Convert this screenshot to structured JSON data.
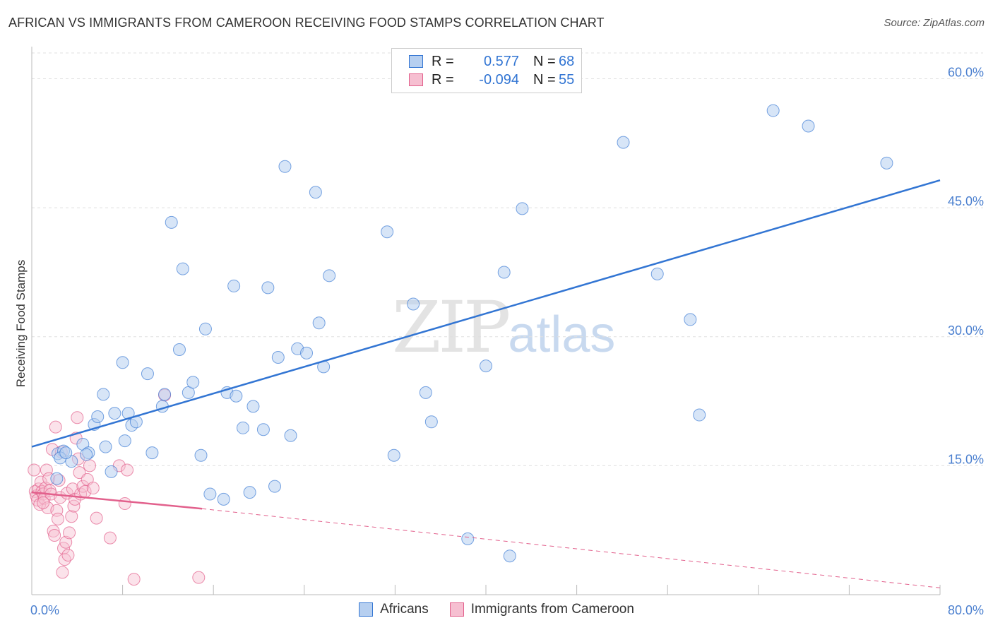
{
  "title": "AFRICAN VS IMMIGRANTS FROM CAMEROON RECEIVING FOOD STAMPS CORRELATION CHART",
  "source": "Source: ZipAtlas.com",
  "watermark": {
    "zip": "ZIP",
    "atlas": "atlas"
  },
  "legend": {
    "r_label": "R =",
    "n_label": "N =",
    "rows": [
      {
        "name": "Africans",
        "r": "0.577",
        "n": "68"
      },
      {
        "name": "Immigrants from Cameroon",
        "r": "-0.094",
        "n": "55"
      }
    ]
  },
  "colors": {
    "blue": "#3275d3",
    "blue_fill": "#b6cff0",
    "pink": "#e2608c",
    "pink_fill": "#f6bfd1",
    "axis_text": "#4a7fcf",
    "grid": "#e0e0e0"
  },
  "chart_data": {
    "type": "scatter",
    "xlabel": "",
    "ylabel": "Receiving Food Stamps",
    "xlim": [
      0,
      80
    ],
    "ylim": [
      0,
      63
    ],
    "x_tick_labels": [
      "0.0%",
      "80.0%"
    ],
    "y_ticks": [
      15,
      30,
      45,
      60
    ],
    "y_tick_labels": [
      "15.0%",
      "30.0%",
      "45.0%",
      "60.0%"
    ],
    "grid": true,
    "series": [
      {
        "name": "Africans",
        "color": "#3275d3",
        "r": 0.577,
        "n": 68,
        "trend": {
          "x0": 0,
          "y0": 17.2,
          "x1": 80,
          "y1": 48.2,
          "dashed_to": null
        },
        "points": [
          [
            2.3,
            16.4
          ],
          [
            2.8,
            16.7
          ],
          [
            3.5,
            15.5
          ],
          [
            2.2,
            13.5
          ],
          [
            4.5,
            17.5
          ],
          [
            5.0,
            16.5
          ],
          [
            5.5,
            19.8
          ],
          [
            6.5,
            17.2
          ],
          [
            5.8,
            20.7
          ],
          [
            6.3,
            23.3
          ],
          [
            7.0,
            14.3
          ],
          [
            7.3,
            21.1
          ],
          [
            8.0,
            27.0
          ],
          [
            8.2,
            17.9
          ],
          [
            8.8,
            19.7
          ],
          [
            8.5,
            21.1
          ],
          [
            9.2,
            20.1
          ],
          [
            10.2,
            25.7
          ],
          [
            10.6,
            16.5
          ],
          [
            11.5,
            21.9
          ],
          [
            11.7,
            23.3
          ],
          [
            12.3,
            43.3
          ],
          [
            13.0,
            28.5
          ],
          [
            13.3,
            37.9
          ],
          [
            13.8,
            23.5
          ],
          [
            14.2,
            24.7
          ],
          [
            14.9,
            16.2
          ],
          [
            15.3,
            30.9
          ],
          [
            15.7,
            11.7
          ],
          [
            16.9,
            11.1
          ],
          [
            17.2,
            23.5
          ],
          [
            17.8,
            35.9
          ],
          [
            18.0,
            23.1
          ],
          [
            18.6,
            19.4
          ],
          [
            19.2,
            11.9
          ],
          [
            19.5,
            21.9
          ],
          [
            20.4,
            19.2
          ],
          [
            20.8,
            35.7
          ],
          [
            21.4,
            12.6
          ],
          [
            21.7,
            27.6
          ],
          [
            22.3,
            49.8
          ],
          [
            22.8,
            18.5
          ],
          [
            23.4,
            28.6
          ],
          [
            24.2,
            28.1
          ],
          [
            25.0,
            46.8
          ],
          [
            25.3,
            31.6
          ],
          [
            25.7,
            26.5
          ],
          [
            26.2,
            37.1
          ],
          [
            31.3,
            42.2
          ],
          [
            31.9,
            16.2
          ],
          [
            33.6,
            33.8
          ],
          [
            34.7,
            23.5
          ],
          [
            35.2,
            20.1
          ],
          [
            38.4,
            6.5
          ],
          [
            40.0,
            26.6
          ],
          [
            41.6,
            37.5
          ],
          [
            42.1,
            4.5
          ],
          [
            43.2,
            44.9
          ],
          [
            52.1,
            52.6
          ],
          [
            55.1,
            37.3
          ],
          [
            58.0,
            32.0
          ],
          [
            58.8,
            20.9
          ],
          [
            65.3,
            56.3
          ],
          [
            68.4,
            54.5
          ],
          [
            75.3,
            50.2
          ],
          [
            2.5,
            15.9
          ],
          [
            3.0,
            16.5
          ],
          [
            4.8,
            16.3
          ]
        ]
      },
      {
        "name": "Immigrants from Cameroon",
        "color": "#e2608c",
        "r": -0.094,
        "n": 55,
        "trend": {
          "x0": 0,
          "y0": 11.9,
          "x1": 15.0,
          "y1": 10.0,
          "dashed_to": {
            "x": 80,
            "y": 0.8
          }
        },
        "points": [
          [
            0.2,
            14.5
          ],
          [
            0.3,
            12.0
          ],
          [
            0.4,
            11.5
          ],
          [
            0.5,
            11.0
          ],
          [
            0.6,
            12.3
          ],
          [
            0.7,
            10.5
          ],
          [
            0.8,
            13.1
          ],
          [
            0.9,
            12.0
          ],
          [
            1.0,
            11.7
          ],
          [
            1.1,
            11.2
          ],
          [
            1.2,
            12.4
          ],
          [
            1.3,
            14.5
          ],
          [
            1.4,
            10.1
          ],
          [
            1.5,
            13.5
          ],
          [
            1.6,
            12.1
          ],
          [
            1.7,
            11.7
          ],
          [
            1.8,
            16.9
          ],
          [
            1.9,
            7.4
          ],
          [
            2.0,
            6.9
          ],
          [
            2.1,
            19.5
          ],
          [
            2.2,
            9.8
          ],
          [
            2.3,
            8.8
          ],
          [
            2.4,
            13.3
          ],
          [
            2.5,
            11.3
          ],
          [
            2.6,
            16.6
          ],
          [
            2.7,
            2.6
          ],
          [
            2.8,
            5.4
          ],
          [
            2.9,
            4.1
          ],
          [
            3.0,
            6.1
          ],
          [
            3.1,
            11.8
          ],
          [
            3.2,
            4.6
          ],
          [
            3.3,
            7.2
          ],
          [
            3.5,
            9.1
          ],
          [
            3.6,
            12.3
          ],
          [
            3.7,
            10.3
          ],
          [
            3.8,
            11.1
          ],
          [
            3.9,
            18.2
          ],
          [
            4.0,
            20.6
          ],
          [
            4.1,
            15.8
          ],
          [
            4.2,
            14.2
          ],
          [
            4.3,
            11.7
          ],
          [
            4.5,
            12.6
          ],
          [
            4.7,
            12.0
          ],
          [
            4.9,
            13.4
          ],
          [
            5.1,
            15.0
          ],
          [
            5.4,
            12.4
          ],
          [
            5.7,
            8.9
          ],
          [
            6.9,
            6.6
          ],
          [
            7.7,
            15.0
          ],
          [
            8.2,
            10.6
          ],
          [
            8.4,
            14.5
          ],
          [
            9.0,
            1.8
          ],
          [
            11.7,
            23.2
          ],
          [
            14.7,
            2.0
          ],
          [
            1.0,
            10.7
          ]
        ]
      }
    ]
  }
}
